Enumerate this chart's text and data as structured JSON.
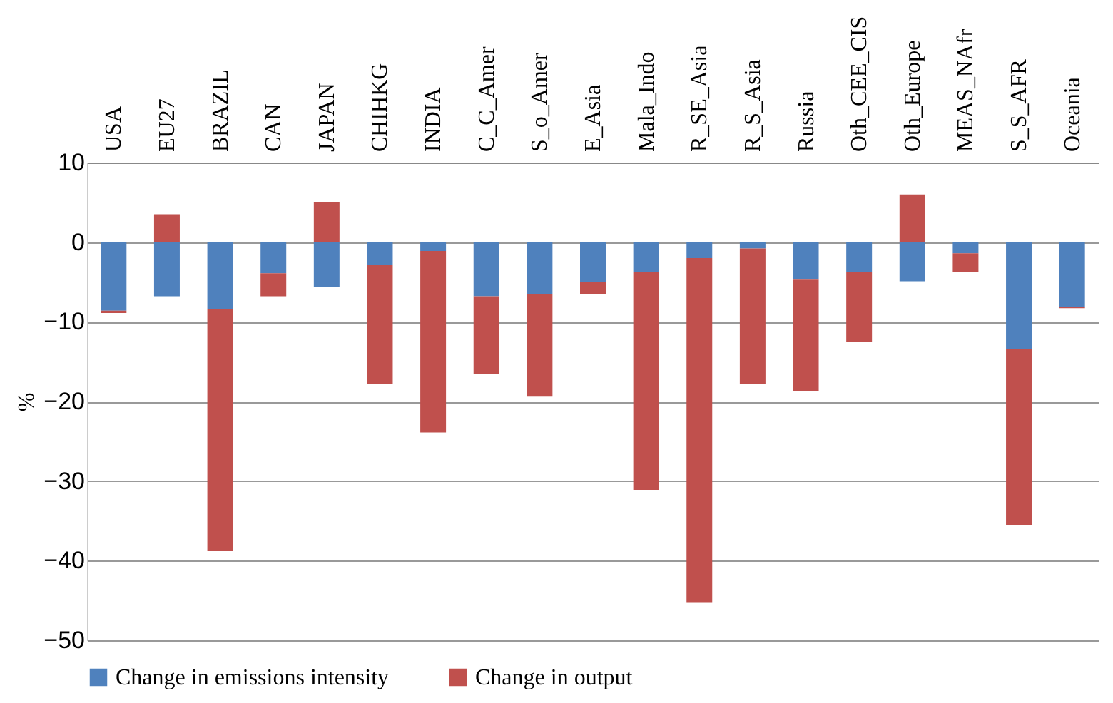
{
  "chart_data": {
    "type": "bar",
    "stacked": true,
    "ylabel": "%",
    "categories": [
      "USA",
      "EU27",
      "BRAZIL",
      "CAN",
      "JAPAN",
      "CHIHKG",
      "INDIA",
      "C_C_Amer",
      "S_o_Amer",
      "E_Asia",
      "Mala_Indo",
      "R_SE_Asia",
      "R_S_Asia",
      "Russia",
      "Oth_CEE_CIS",
      "Oth_Europe",
      "MEAS_NAfr",
      "S_S_AFR",
      "Oceania"
    ],
    "series": [
      {
        "name": "Change in emissions intensity",
        "color": "#4f81bd",
        "values": [
          -8.6,
          -6.8,
          -8.4,
          -3.9,
          -5.6,
          -2.9,
          -1.1,
          -6.8,
          -6.5,
          -5.0,
          -3.8,
          -2.0,
          -0.8,
          -4.7,
          -3.8,
          -4.9,
          -1.4,
          -13.4,
          -8.1
        ]
      },
      {
        "name": "Change in output",
        "color": "#c0504d",
        "values": [
          -0.3,
          3.5,
          -30.4,
          -2.9,
          5.0,
          -14.9,
          -22.8,
          -9.8,
          -12.9,
          -1.5,
          -27.3,
          -43.3,
          -17.0,
          -14.0,
          -8.7,
          6.0,
          -2.3,
          -22.1,
          -0.2
        ]
      }
    ],
    "ylim": [
      -50,
      10
    ],
    "yticks": [
      -50,
      -40,
      -30,
      -20,
      -10,
      0,
      10
    ],
    "grid": "y",
    "legend": "bottom"
  }
}
